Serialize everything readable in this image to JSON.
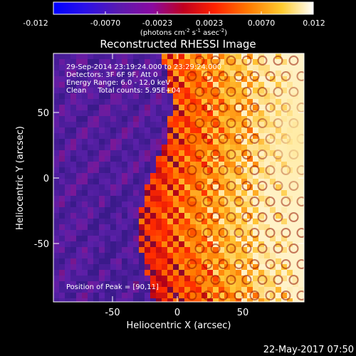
{
  "colorbar": {
    "tick_labels": [
      "-0.012",
      "-0.0070",
      "-0.0023",
      "0.0023",
      "0.0070",
      "0.012"
    ],
    "units_parts": [
      "(photons cm",
      "-2",
      " s",
      "-1",
      " asec",
      "-2",
      ")"
    ]
  },
  "title": "Reconstructed RHESSI Image",
  "annotations": {
    "time_range": "29-Sep-2014 23:19:24.000 to 23:29:24.000",
    "detectors": "Detectors: 3F 6F 9F, Att 0",
    "energy": "Energy Range: 6.0 - 12.0 keV",
    "clean": "Clean     Total counts: 5.95E+04",
    "peak": "Position of Peak = [90,11]"
  },
  "axes": {
    "xlabel": "Heliocentric X (arcsec)",
    "ylabel": "Heliocentric Y (arcsec)",
    "xticks": [
      "-50",
      "0",
      "50"
    ],
    "yticks": [
      "50",
      "0",
      "-50"
    ]
  },
  "timestamp": "22-May-2017 07:50",
  "colors": {
    "colormap": [
      "#0000ff",
      "#4b2aa0",
      "#7a1aa8",
      "#b40020",
      "#ff2a00",
      "#ff8c00",
      "#ffd24a",
      "#ffffff"
    ]
  }
}
